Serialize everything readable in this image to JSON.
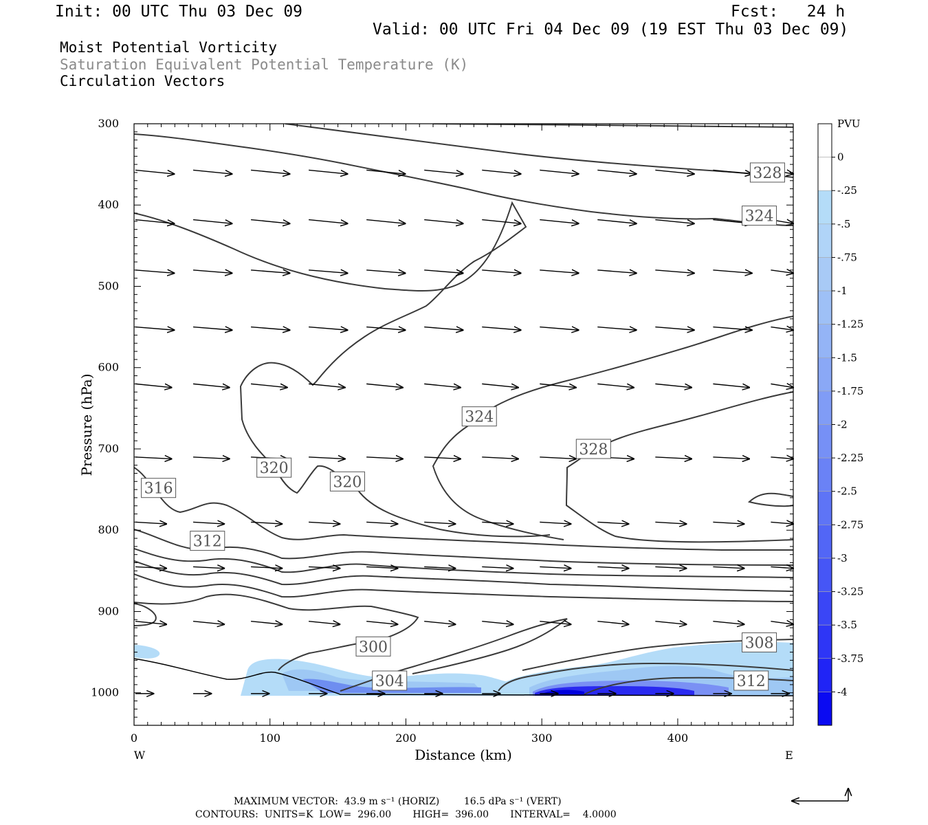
{
  "header": {
    "init": "Init: 00 UTC Thu 03 Dec 09",
    "fcst": "Fcst:   24 h",
    "valid": "Valid: 00 UTC Fri 04 Dec 09 (19 EST Thu 03 Dec 09)",
    "field1": "Moist Potential Vorticity",
    "field2": "Saturation Equivalent Potential Temperature (K)",
    "field3": "Circulation Vectors"
  },
  "footer": {
    "maxvec": "MAXIMUM VECTOR:  43.9 m s⁻¹ (HORIZ)        16.5 dPa s⁻¹ (VERT)",
    "contours": "CONTOURS:  UNITS=K  LOW=  296.00       HIGH=  396.00       INTERVAL=    4.0000"
  },
  "colors": {
    "contour": "#3a3a3a",
    "mpv_light": "#b4dcf8",
    "mpv_dark": "#0000ee"
  },
  "chart_data": {
    "type": "cross-section",
    "xlabel": "Distance (km)",
    "ylabel": "Pressure (hPa)",
    "xlim": [
      0,
      485
    ],
    "ylim": [
      1040,
      300
    ],
    "x_ticks": [
      0,
      100,
      200,
      300,
      400
    ],
    "y_ticks": [
      300,
      400,
      500,
      600,
      700,
      800,
      900,
      1000
    ],
    "x_end_labels": {
      "left": "W",
      "right": "E"
    },
    "contour_labels": [
      {
        "value": "328",
        "x": 466,
        "p": 360
      },
      {
        "value": "324",
        "x": 460,
        "p": 413
      },
      {
        "value": "324",
        "x": 254,
        "p": 660
      },
      {
        "value": "328",
        "x": 338,
        "p": 700
      },
      {
        "value": "320",
        "x": 103,
        "p": 723
      },
      {
        "value": "320",
        "x": 157,
        "p": 740
      },
      {
        "value": "316",
        "x": 18,
        "p": 748
      },
      {
        "value": "312",
        "x": 54,
        "p": 813
      },
      {
        "value": "300",
        "x": 176,
        "p": 943
      },
      {
        "value": "308",
        "x": 460,
        "p": 938
      },
      {
        "value": "304",
        "x": 188,
        "p": 985
      },
      {
        "value": "312",
        "x": 454,
        "p": 985
      }
    ],
    "colorbar": {
      "title": "PVU",
      "levels": [
        "0",
        "-.25",
        "-.5",
        "-.75",
        "-1",
        "-1.25",
        "-1.5",
        "-1.75",
        "-2",
        "-2.25",
        "-2.5",
        "-2.75",
        "-3",
        "-3.25",
        "-3.5",
        "-3.75",
        "-4"
      ]
    },
    "vector_rows": [
      {
        "p": 357,
        "len": 30,
        "tilt": 0.1
      },
      {
        "p": 418,
        "len": 30,
        "tilt": 0.1
      },
      {
        "p": 480,
        "len": 30,
        "tilt": 0.08
      },
      {
        "p": 550,
        "len": 30,
        "tilt": 0.08
      },
      {
        "p": 620,
        "len": 28,
        "tilt": 0.1
      },
      {
        "p": 710,
        "len": 28,
        "tilt": 0.05
      },
      {
        "p": 790,
        "len": 24,
        "tilt": 0.06
      },
      {
        "p": 845,
        "len": 24,
        "tilt": 0.05
      },
      {
        "p": 912,
        "len": 24,
        "tilt": 0.1
      },
      {
        "p": 1001,
        "len": 14,
        "tilt": 0.0
      }
    ]
  }
}
